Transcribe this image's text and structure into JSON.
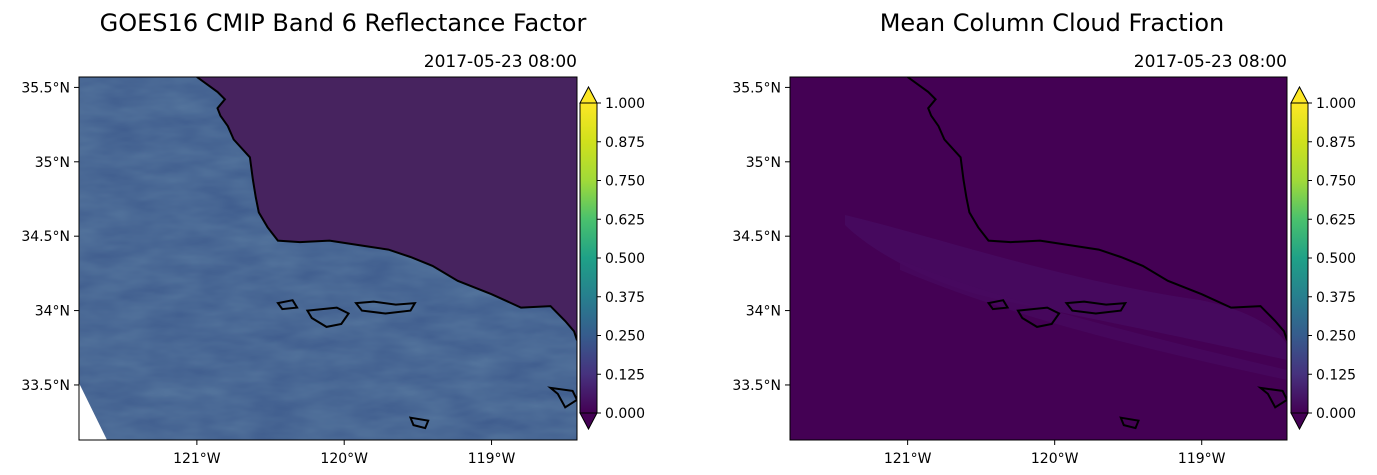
{
  "chart_data": [
    {
      "type": "heatmap",
      "title": "GOES16 CMIP Band 6 Reflectance Factor",
      "subtitle": "2017-05-23 08:00",
      "x_tick_labels": [
        "121°W",
        "120°W",
        "119°W"
      ],
      "x_ticks": [
        -121,
        -120,
        -119
      ],
      "y_tick_labels": [
        "33.5°N",
        "34°N",
        "34.5°N",
        "35°N",
        "35.5°N"
      ],
      "y_ticks": [
        33.5,
        34,
        34.5,
        35,
        35.5
      ],
      "xlim": [
        -121.8,
        -118.42
      ],
      "ylim": [
        33.13,
        35.57
      ],
      "colormap": "viridis",
      "colorbar": {
        "ticks": [
          0.0,
          0.125,
          0.25,
          0.375,
          0.5,
          0.625,
          0.75,
          0.875,
          1.0
        ],
        "tick_labels": [
          "0.000",
          "0.125",
          "0.250",
          "0.375",
          "0.500",
          "0.625",
          "0.750",
          "0.875",
          "1.000"
        ],
        "extend": "both"
      },
      "field_summary": {
        "land_value": 0.06,
        "ocean_value": 0.3,
        "max_observed": 0.42
      }
    },
    {
      "type": "heatmap",
      "title": "Mean Column Cloud Fraction",
      "subtitle": "2017-05-23 08:00",
      "x_tick_labels": [
        "121°W",
        "120°W",
        "119°W"
      ],
      "x_ticks": [
        -121,
        -120,
        -119
      ],
      "y_tick_labels": [
        "33.5°N",
        "34°N",
        "34.5°N",
        "35°N",
        "35.5°N"
      ],
      "y_ticks": [
        33.5,
        34,
        34.5,
        35,
        35.5
      ],
      "xlim": [
        -121.8,
        -118.42
      ],
      "ylim": [
        33.13,
        35.57
      ],
      "colormap": "viridis",
      "colorbar": {
        "ticks": [
          0.0,
          0.125,
          0.25,
          0.375,
          0.5,
          0.625,
          0.75,
          0.875,
          1.0
        ],
        "tick_labels": [
          "0.000",
          "0.125",
          "0.250",
          "0.375",
          "0.500",
          "0.625",
          "0.750",
          "0.875",
          "1.000"
        ],
        "extend": "both"
      },
      "field_summary": {
        "background_value": 0.0,
        "streak_value": 0.05
      }
    }
  ],
  "coastline": [
    [
      -121.0,
      35.57
    ],
    [
      -120.86,
      35.47
    ],
    [
      -120.81,
      35.42
    ],
    [
      -120.86,
      35.36
    ],
    [
      -120.84,
      35.31
    ],
    [
      -120.79,
      35.24
    ],
    [
      -120.75,
      35.15
    ],
    [
      -120.64,
      35.03
    ],
    [
      -120.62,
      34.88
    ],
    [
      -120.6,
      34.76
    ],
    [
      -120.58,
      34.66
    ],
    [
      -120.52,
      34.56
    ],
    [
      -120.45,
      34.47
    ],
    [
      -120.3,
      34.46
    ],
    [
      -120.1,
      34.47
    ],
    [
      -119.9,
      34.44
    ],
    [
      -119.7,
      34.41
    ],
    [
      -119.55,
      34.36
    ],
    [
      -119.4,
      34.3
    ],
    [
      -119.23,
      34.2
    ],
    [
      -119.0,
      34.11
    ],
    [
      -118.8,
      34.02
    ],
    [
      -118.6,
      34.03
    ],
    [
      -118.5,
      33.93
    ],
    [
      -118.44,
      33.86
    ],
    [
      -118.42,
      33.8
    ]
  ],
  "islands": [
    [
      [
        -120.45,
        34.05
      ],
      [
        -120.35,
        34.07
      ],
      [
        -120.32,
        34.02
      ],
      [
        -120.42,
        34.01
      ]
    ],
    [
      [
        -120.25,
        34.0
      ],
      [
        -120.05,
        34.02
      ],
      [
        -119.97,
        33.98
      ],
      [
        -120.02,
        33.91
      ],
      [
        -120.12,
        33.89
      ],
      [
        -120.22,
        33.95
      ]
    ],
    [
      [
        -119.92,
        34.05
      ],
      [
        -119.8,
        34.06
      ],
      [
        -119.65,
        34.04
      ],
      [
        -119.52,
        34.05
      ],
      [
        -119.55,
        34.0
      ],
      [
        -119.72,
        33.98
      ],
      [
        -119.88,
        34.0
      ]
    ],
    [
      [
        -119.55,
        33.28
      ],
      [
        -119.43,
        33.26
      ],
      [
        -119.45,
        33.21
      ],
      [
        -119.53,
        33.23
      ]
    ],
    [
      [
        -118.6,
        33.48
      ],
      [
        -118.45,
        33.46
      ],
      [
        -118.42,
        33.4
      ],
      [
        -118.5,
        33.35
      ],
      [
        -118.55,
        33.44
      ]
    ]
  ]
}
